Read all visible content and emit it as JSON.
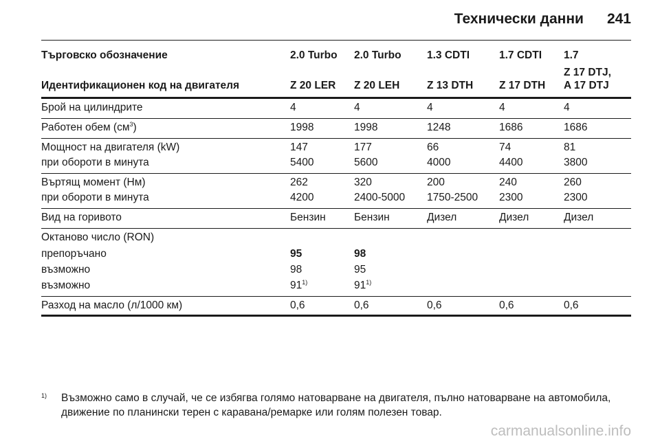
{
  "header": {
    "title": "Технически данни",
    "page_number": "241"
  },
  "table": {
    "head": {
      "label_row1": "Търговско обозначение",
      "label_row2": "Идентификационен код на двигателя",
      "models": [
        {
          "name": "2.0 Turbo",
          "code_line1": "",
          "code": "Z 20 LER"
        },
        {
          "name": "2.0 Turbo",
          "code_line1": "",
          "code": "Z 20 LEH"
        },
        {
          "name": "1.3 CDTI",
          "code_line1": "",
          "code": "Z 13 DTH"
        },
        {
          "name": "1.7 CDTI",
          "code_line1": "",
          "code": "Z 17 DTH"
        },
        {
          "name": "1.7",
          "code_line1": "Z 17 DTJ,",
          "code": "A 17 DTJ"
        }
      ]
    },
    "rows": {
      "cylinders": {
        "label": "Брой на цилиндрите",
        "values": [
          "4",
          "4",
          "4",
          "4",
          "4"
        ]
      },
      "displacement": {
        "label": "Работен обем (см",
        "label_sup": "3",
        "label_end": ")",
        "values": [
          "1998",
          "1998",
          "1248",
          "1686",
          "1686"
        ]
      },
      "power": {
        "label": "Мощност на двигателя (kW)",
        "values": [
          "147",
          "177",
          "66",
          "74",
          "81"
        ]
      },
      "power_rpm": {
        "label": "при обороти в минута",
        "values": [
          "5400",
          "5600",
          "4000",
          "4400",
          "3800"
        ]
      },
      "torque": {
        "label": "Въртящ момент (Нм)",
        "values": [
          "262",
          "320",
          "200",
          "240",
          "260"
        ]
      },
      "torque_rpm": {
        "label": "при обороти в минута",
        "values": [
          "4200",
          "2400-5000",
          "1750-2500",
          "2300",
          "2300"
        ]
      },
      "fuel": {
        "label": "Вид на горивото",
        "values": [
          "Бензин",
          "Бензин",
          "Дизел",
          "Дизел",
          "Дизел"
        ]
      },
      "octane": {
        "label": "Октаново число (RON)"
      },
      "recommended": {
        "label": "препоръчано",
        "values": [
          "95",
          "98"
        ]
      },
      "possible1": {
        "label": "възможно",
        "values": [
          "98",
          "95"
        ]
      },
      "possible2": {
        "label": "възможно",
        "values": [
          "91",
          "91"
        ],
        "sup": "1)"
      },
      "oil": {
        "label": "Разход на масло (л/1000 км)",
        "values": [
          "0,6",
          "0,6",
          "0,6",
          "0,6",
          "0,6"
        ]
      }
    }
  },
  "footnote": {
    "mark": "1)",
    "text": "Възможно само в случай, че се избягва голямо натоварване на двигателя, пълно натоварване на автомобила, движение по планински терен с каравана/ремарке или голям полезен товар."
  },
  "watermark": "carmanualsonline.info"
}
